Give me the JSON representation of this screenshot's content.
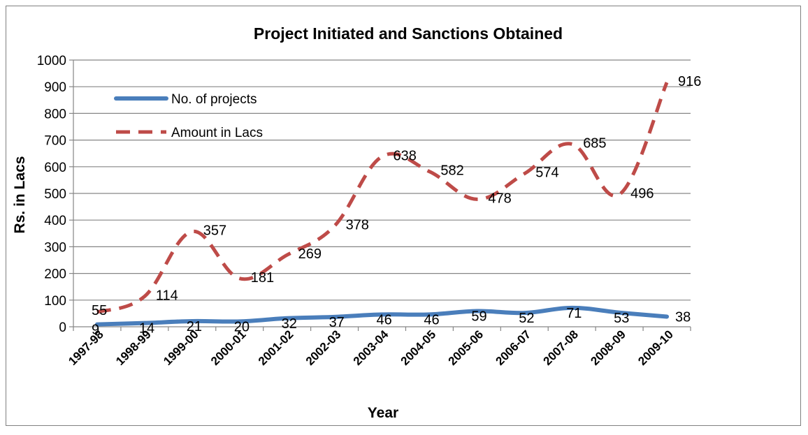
{
  "chart_data": {
    "type": "line",
    "title": "Project Initiated and Sanctions Obtained",
    "xlabel": "Year",
    "ylabel": "Rs. in Lacs",
    "ylim": [
      0,
      1000
    ],
    "yticks": [
      "0",
      "100",
      "200",
      "300",
      "400",
      "500",
      "600",
      "700",
      "800",
      "900",
      "1000"
    ],
    "grid": "horizontal",
    "legend_position": "top-left",
    "categories": [
      "1997-98",
      "1998-99",
      "1999-00",
      "2000-01",
      "2001-02",
      "2002-03",
      "2003-04",
      "2004-05",
      "2005-06",
      "2006-07",
      "2007-08",
      "2008-09",
      "2009-10"
    ],
    "series": [
      {
        "name": "No. of projects",
        "color": "#4a7ebb",
        "style": "solid",
        "values": [
          9,
          14,
          21,
          20,
          32,
          37,
          46,
          46,
          59,
          52,
          71,
          53,
          38
        ]
      },
      {
        "name": "Amount in Lacs",
        "color": "#be4b48",
        "style": "dashed",
        "values": [
          55,
          114,
          357,
          181,
          269,
          378,
          638,
          582,
          478,
          574,
          685,
          496,
          916
        ]
      }
    ]
  }
}
